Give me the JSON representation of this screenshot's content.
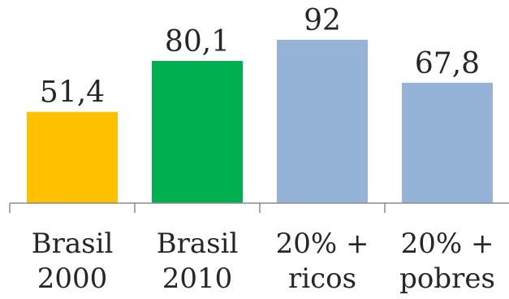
{
  "chart_data": {
    "type": "bar",
    "categories": [
      [
        "Brasil",
        "2000"
      ],
      [
        "Brasil",
        "2010"
      ],
      [
        "20% +",
        "ricos"
      ],
      [
        "20% +",
        "pobres"
      ]
    ],
    "values": [
      51.4,
      80.1,
      92,
      67.8
    ],
    "value_labels": [
      "51,4",
      "80,1",
      "92",
      "67,8"
    ],
    "bar_colors": [
      "#FFC000",
      "#00B050",
      "#95B3D7",
      "#95B3D7"
    ],
    "ylim": [
      0,
      92
    ],
    "grid": false,
    "legend": "none",
    "title": "",
    "xlabel": "",
    "ylabel": ""
  }
}
